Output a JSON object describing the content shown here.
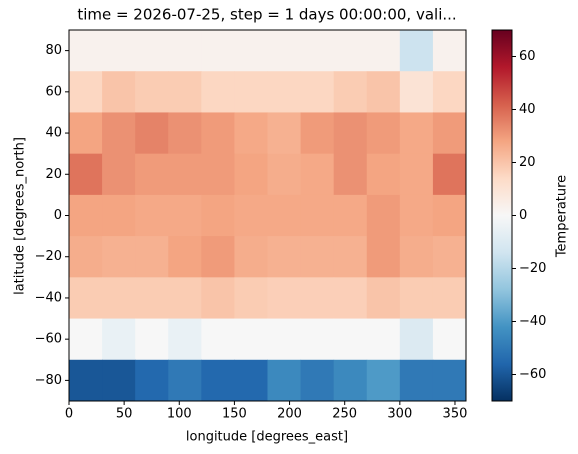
{
  "chart_data": {
    "type": "heatmap",
    "title": "time = 2026-07-25, step = 1 days 00:00:00, vali...",
    "xlabel": "longitude [degrees_east]",
    "ylabel": "latitude [degrees_north]",
    "colorbar_label": "Temperature",
    "x_edges": [
      0,
      30,
      60,
      90,
      120,
      150,
      180,
      210,
      240,
      270,
      300,
      330,
      360
    ],
    "y_edges": [
      90,
      70,
      50,
      30,
      10,
      -10,
      -30,
      -50,
      -70,
      -90
    ],
    "values": [
      [
        3,
        3,
        3,
        3,
        3,
        3,
        3,
        3,
        3,
        3,
        -15,
        3
      ],
      [
        15,
        20,
        18,
        18,
        15,
        15,
        15,
        15,
        18,
        20,
        10,
        15
      ],
      [
        28,
        32,
        35,
        32,
        30,
        27,
        25,
        30,
        32,
        30,
        27,
        30
      ],
      [
        38,
        32,
        30,
        30,
        30,
        28,
        26,
        27,
        32,
        28,
        27,
        38
      ],
      [
        28,
        28,
        27,
        27,
        28,
        27,
        27,
        27,
        27,
        30,
        27,
        28
      ],
      [
        26,
        25,
        25,
        28,
        30,
        26,
        25,
        25,
        25,
        30,
        26,
        25
      ],
      [
        18,
        18,
        18,
        18,
        20,
        18,
        17,
        17,
        17,
        20,
        18,
        18
      ],
      [
        0,
        -5,
        0,
        -5,
        0,
        0,
        0,
        0,
        0,
        0,
        -10,
        0
      ],
      [
        -60,
        -60,
        -55,
        -50,
        -55,
        -55,
        -45,
        -50,
        -45,
        -40,
        -50,
        -50
      ]
    ],
    "colormap": [
      "#053061",
      "#2166ac",
      "#4393c3",
      "#92c5de",
      "#d1e5f0",
      "#f7f7f7",
      "#fddbc7",
      "#f4a582",
      "#d6604d",
      "#b2182b",
      "#67001f"
    ],
    "xlim": [
      0,
      360
    ],
    "xticks": [
      0,
      50,
      100,
      150,
      200,
      250,
      300,
      350
    ],
    "ylim": [
      -90,
      90
    ],
    "yticks": [
      {
        "value": -80,
        "label": "−80"
      },
      {
        "value": -60,
        "label": "−60"
      },
      {
        "value": -40,
        "label": "−40"
      },
      {
        "value": -20,
        "label": "−20"
      },
      0,
      20,
      40,
      60,
      80
    ],
    "clim": [
      -70,
      70
    ],
    "cticks": [
      {
        "value": -60,
        "label": "−60"
      },
      {
        "value": -40,
        "label": "−40"
      },
      {
        "value": -20,
        "label": "−20"
      },
      0,
      20,
      40,
      60
    ]
  }
}
